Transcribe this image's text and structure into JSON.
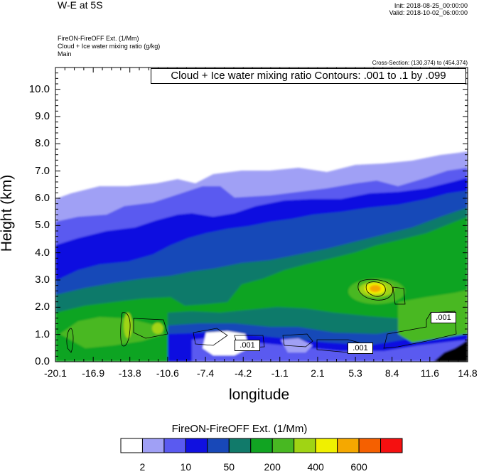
{
  "header": {
    "title": "W-E at 5S",
    "init": "Init: 2018-08-25_00:00:00",
    "valid": "Valid: 2018-10-02_06:00:00",
    "field_line1": "FireON-FireOFF Ext.   (1/Mm)",
    "field_line2": "Cloud + Ice water mixing ratio   (g/kg)",
    "field_line3": "Main",
    "cross_section": "Cross-Section: (130,374) to (454,374)"
  },
  "chart_data": {
    "type": "heatmap",
    "contour_label": "Cloud + Ice water mixing ratio Contours: .001 to .1 by .099",
    "xlabel": "longitude",
    "ylabel": "Height (km)",
    "xlim": [
      -20.1,
      14.8
    ],
    "ylim": [
      0.0,
      10.8
    ],
    "x_ticks": [
      "-20.1",
      "-16.9",
      "-13.8",
      "-10.6",
      "-7.4",
      "-4.2",
      "-1.1",
      "2.1",
      "5.3",
      "8.4",
      "11.6",
      "14.8"
    ],
    "x_tick_values": [
      -20.1,
      -16.9,
      -13.8,
      -10.6,
      -7.4,
      -4.2,
      -1.1,
      2.1,
      5.3,
      8.4,
      11.6,
      14.8
    ],
    "y_ticks": [
      "0.0",
      "1.0",
      "2.0",
      "3.0",
      "4.0",
      "5.0",
      "6.0",
      "7.0",
      "8.0",
      "9.0",
      "10.0"
    ],
    "y_tick_values": [
      0,
      1,
      2,
      3,
      4,
      5,
      6,
      7,
      8,
      9,
      10
    ],
    "contour_labels": [
      ".001",
      ".001",
      ".001"
    ],
    "colorbar": {
      "title": "FireON-FireOFF Ext.  (1/Mm)",
      "labels": [
        "2",
        "10",
        "50",
        "200",
        "400",
        "600"
      ],
      "colors": [
        "#ffffff",
        "#a0a0f5",
        "#5a5af0",
        "#1010e0",
        "#1848b8",
        "#117a6a",
        "#11a422",
        "#48b822",
        "#a0d414",
        "#f0f000",
        "#f5a800",
        "#f56000",
        "#f51010"
      ]
    }
  }
}
